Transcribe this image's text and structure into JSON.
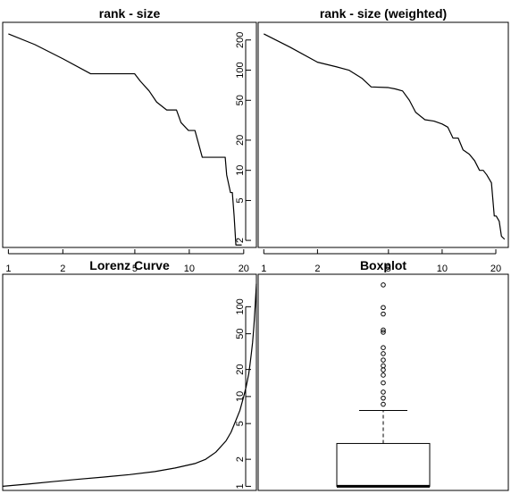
{
  "chart_data": [
    {
      "type": "line",
      "title": "rank - size",
      "xlabel": "",
      "ylabel": "",
      "x_scale": "log",
      "y_scale": "log",
      "x_ticks": [
        1,
        2,
        5,
        10,
        20
      ],
      "y_ticks": [
        2,
        5,
        10,
        20,
        50,
        100,
        200
      ],
      "xlim": [
        0.93,
        23.5
      ],
      "ylim": [
        1.7,
        300
      ],
      "grid": false,
      "legend": "none",
      "series": [
        {
          "x": [
            1,
            1.4,
            2,
            2.85,
            3,
            4,
            4.99,
            5.35,
            6,
            6.6,
            7.5,
            8.5,
            9.0,
            9.9,
            10.75,
            11.8,
            15.8,
            16.1,
            16.9,
            17.3,
            17.7,
            18.1,
            18.8,
            19.5
          ],
          "y": [
            230,
            180,
            130,
            92,
            92,
            92,
            92,
            78,
            62,
            48,
            40,
            40,
            30,
            25,
            25,
            13.5,
            13.5,
            9,
            6,
            6,
            3.5,
            1.8,
            1.8,
            1.8
          ]
        }
      ]
    },
    {
      "type": "line",
      "title": "rank - size (weighted)",
      "xlabel": "",
      "ylabel": "",
      "x_scale": "log",
      "y_scale": "log",
      "x_ticks": [
        1,
        2,
        5,
        10,
        20
      ],
      "y_ticks": [
        2,
        5,
        10,
        20,
        50,
        100,
        200
      ],
      "xlim": [
        0.93,
        23.5
      ],
      "ylim": [
        1.7,
        300
      ],
      "grid": false,
      "legend": "none",
      "series": [
        {
          "x": [
            1,
            1.4,
            2,
            2.55,
            3,
            3.55,
            4,
            4.99,
            5.45,
            6,
            6.55,
            7.1,
            8.0,
            9.0,
            10,
            10.75,
            11.5,
            12.3,
            13.1,
            14.2,
            15.2,
            16.2,
            17.0,
            17.8,
            18.9,
            19.6,
            20.1,
            20.9,
            21.5,
            22.4
          ],
          "y": [
            230,
            170,
            120,
            108,
            100,
            83,
            68,
            67,
            65,
            62,
            50,
            38,
            32,
            31,
            29,
            27,
            21,
            21,
            16,
            14.5,
            12.5,
            10,
            10,
            9,
            7.5,
            3.5,
            3.5,
            3.1,
            2.2,
            2.05
          ]
        }
      ]
    },
    {
      "type": "line",
      "title": "Lorenz Curve",
      "xlabel": "",
      "ylabel": "",
      "y_scale": "log",
      "y_ticks": [
        1,
        2,
        5,
        10,
        20,
        50,
        100
      ],
      "xlim": [
        0,
        1
      ],
      "ylim": [
        0.9,
        230
      ],
      "grid": false,
      "legend": "none",
      "series": [
        {
          "x": [
            0.0,
            0.1,
            0.2,
            0.3,
            0.4,
            0.5,
            0.6,
            0.68,
            0.76,
            0.8,
            0.84,
            0.88,
            0.9,
            0.92,
            0.935,
            0.95,
            0.96,
            0.97,
            0.975,
            0.98,
            0.985,
            0.99,
            0.995,
            1.0
          ],
          "y": [
            1.0,
            1.06,
            1.13,
            1.2,
            1.27,
            1.35,
            1.46,
            1.6,
            1.8,
            2.0,
            2.4,
            3.2,
            4.0,
            5.5,
            7.0,
            10,
            13,
            18,
            23,
            30,
            40,
            60,
            100,
            180
          ]
        }
      ]
    },
    {
      "type": "box",
      "title": "Boxplot",
      "xlabel": "",
      "ylabel": "",
      "y_scale": "log",
      "y_ticks": [
        1,
        2,
        5,
        10,
        20,
        50,
        100
      ],
      "ylim": [
        0.9,
        230
      ],
      "grid": false,
      "legend": "none",
      "box": {
        "min": 1,
        "q1": 1,
        "median": 1,
        "q3": 3,
        "whisker_high": 7,
        "outliers": [
          8.2,
          9.6,
          11.2,
          14.2,
          17.3,
          19.8,
          22,
          25.5,
          30,
          35,
          52,
          55,
          83,
          98,
          175
        ]
      }
    }
  ]
}
